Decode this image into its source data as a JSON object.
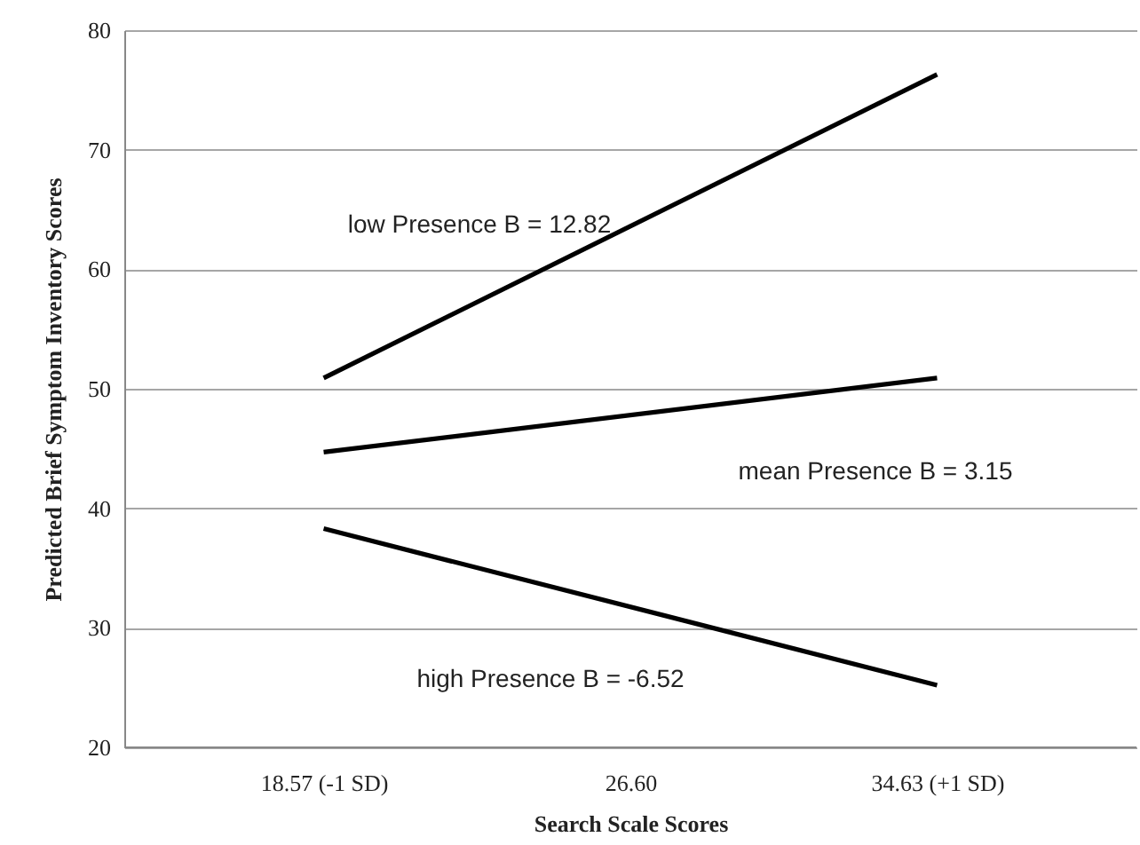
{
  "chart_data": {
    "type": "line",
    "xlabel": "Search Scale Scores",
    "ylabel": "Predicted Brief Symptom Inventory Scores",
    "categories": [
      "18.57 (-1 SD)",
      "26.60",
      "34.63 (+1 SD)"
    ],
    "series": [
      {
        "color": "#000000",
        "values": [
          50.9,
          null,
          76.3
        ]
      },
      {
        "color": "#000000",
        "values": [
          44.7,
          null,
          50.9
        ]
      },
      {
        "color": "#000000",
        "values": [
          38.3,
          null,
          25.2
        ]
      }
    ],
    "annotations": [
      "low Presence B = 12.82",
      "mean Presence  B = 3.15",
      "high Presence B = -6.52"
    ],
    "ylim": [
      20,
      80
    ],
    "yticks": [
      20,
      30,
      40,
      50,
      60,
      70,
      80
    ],
    "grid": "y",
    "line_style": "solid"
  }
}
